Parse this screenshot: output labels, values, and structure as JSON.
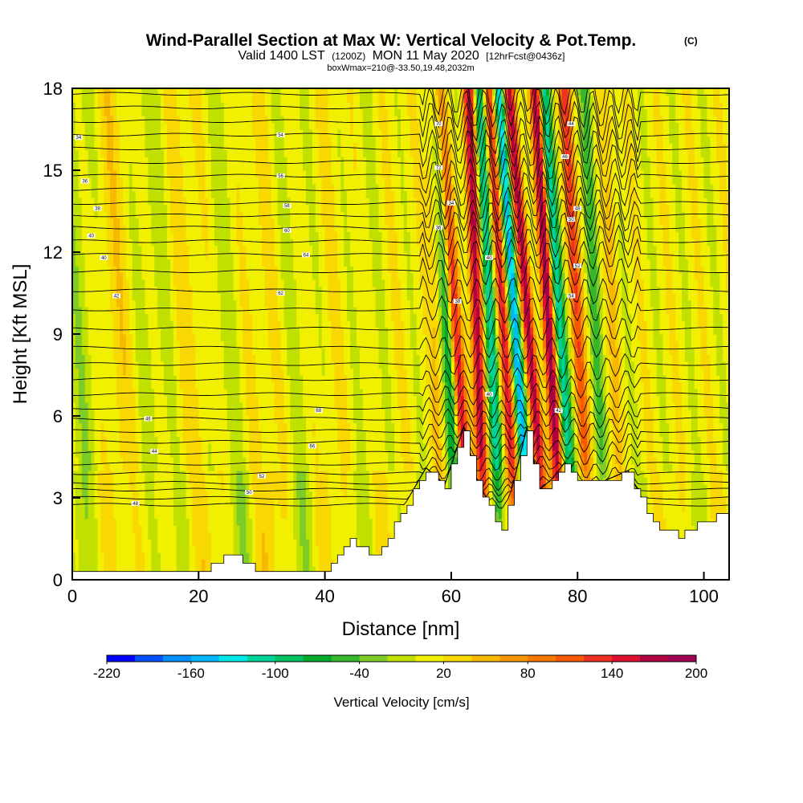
{
  "chart_data": {
    "type": "heatmap",
    "title": "Wind-Parallel Section at Max W: Vertical Velocity & Pot.Temp.",
    "title_mark": "(C)",
    "subtitle": {
      "valid": "Valid 1400 LST",
      "utc": "(1200Z)",
      "date": "MON 11 May 2020",
      "forecast": "[12hrFcst@0436z]"
    },
    "box_info": "boxWmax=210@-33.50,19.48,2032m",
    "xlabel": "Distance [nm]",
    "ylabel": "Height [Kft MSL]",
    "xlim": [
      0,
      104
    ],
    "ylim": [
      0,
      18
    ],
    "xticks": [
      0,
      20,
      40,
      60,
      80,
      100
    ],
    "yticks": [
      0,
      3,
      6,
      9,
      12,
      15,
      18
    ],
    "colorbar": {
      "label": "Vertical Velocity [cm/s]",
      "min": -220,
      "max": 200,
      "step": 20,
      "tick_values": [
        -220,
        -160,
        -100,
        -40,
        20,
        80,
        140,
        200
      ],
      "colors": [
        "#0000ff",
        "#0050ff",
        "#0090ff",
        "#00b8ff",
        "#00e8e8",
        "#00d49a",
        "#00c060",
        "#00aa2a",
        "#35b82a",
        "#7dcc28",
        "#c0e000",
        "#f0f000",
        "#f8d800",
        "#f8b800",
        "#f89800",
        "#f87800",
        "#f85800",
        "#f03020",
        "#e01030",
        "#b00040",
        "#a00050"
      ]
    },
    "terrain_profile": {
      "x": [
        0,
        20,
        25,
        30,
        35,
        40,
        44,
        48,
        52,
        56,
        59,
        62,
        64,
        66,
        68,
        70,
        72,
        74,
        76,
        78,
        80,
        84,
        88,
        92,
        96,
        100,
        104
      ],
      "z": [
        0.3,
        0.3,
        0.9,
        0.3,
        0.3,
        0.3,
        1.5,
        0.9,
        2.4,
        4.0,
        3.4,
        5.5,
        3.6,
        2.7,
        1.8,
        3.6,
        5.5,
        3.2,
        3.6,
        4.2,
        3.5,
        3.5,
        3.9,
        2.0,
        1.6,
        2.2,
        2.4
      ]
    },
    "wave_bands": [
      {
        "x": 58.0,
        "tilt": 0.04,
        "w": 50
      },
      {
        "x": 60.5,
        "tilt": 0.06,
        "w": -120
      },
      {
        "x": 62.5,
        "tilt": 0.1,
        "w": 180
      },
      {
        "x": 65.0,
        "tilt": 0.05,
        "w": 200
      },
      {
        "x": 67.5,
        "tilt": 0.07,
        "w": -150
      },
      {
        "x": 70.0,
        "tilt": 0.09,
        "w": 160
      },
      {
        "x": 72.0,
        "tilt": 0.1,
        "w": -180
      },
      {
        "x": 74.5,
        "tilt": 0.12,
        "w": 170
      },
      {
        "x": 77.0,
        "tilt": 0.08,
        "w": 180
      },
      {
        "x": 79.0,
        "tilt": 0.1,
        "w": -140
      },
      {
        "x": 81.5,
        "tilt": 0.08,
        "w": 130
      },
      {
        "x": 84.0,
        "tilt": 0.06,
        "w": -80
      },
      {
        "x": 86.5,
        "tilt": 0.04,
        "w": 60
      }
    ],
    "isentropes": {
      "base_heights": [
        2.75,
        3.0,
        3.3,
        3.55,
        3.9,
        4.25,
        4.65,
        5.05,
        5.45,
        5.9,
        6.3,
        6.8,
        7.35,
        7.9,
        8.5,
        9.2,
        9.9,
        10.6,
        11.3,
        11.9,
        12.4,
        12.9,
        13.35,
        13.8,
        14.3,
        14.8,
        15.3,
        15.8,
        16.3,
        16.8,
        17.3,
        17.8
      ],
      "labels": [
        "34",
        "36",
        "38",
        "40",
        "40",
        "42",
        "44",
        "46",
        "48",
        "50",
        "52",
        "54",
        "56",
        "58",
        "60",
        "62",
        "64",
        "66",
        "68",
        "70",
        "72"
      ]
    }
  }
}
